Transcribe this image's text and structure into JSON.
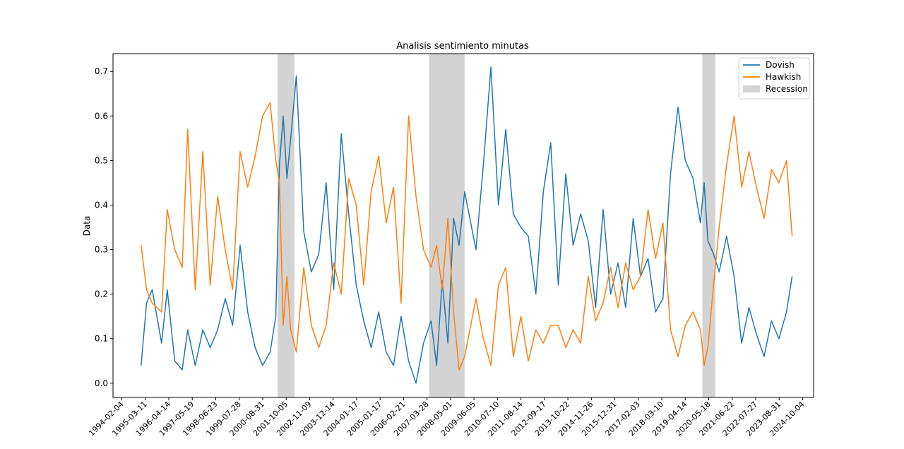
{
  "chart_data": {
    "type": "line",
    "title": "Analisis sentimiento minutas",
    "xlabel": "",
    "ylabel": "Data",
    "ylim": [
      -0.032,
      0.74
    ],
    "xlim": [
      "1993-11-01",
      "2025-01-15"
    ],
    "grid": false,
    "legend_position": "top-right",
    "x_ticks": [
      "1994-02-04",
      "1995-03-11",
      "1996-04-14",
      "1997-05-19",
      "1998-06-23",
      "1999-07-28",
      "2000-08-31",
      "2001-10-05",
      "2002-11-09",
      "2003-12-14",
      "2004-01-17",
      "2005-01-17",
      "2006-02-21",
      "2007-03-28",
      "2008-05-01",
      "2009-06-05",
      "2010-07-10",
      "2011-08-14",
      "2012-09-17",
      "2013-10-22",
      "2014-11-26",
      "2015-12-31",
      "2017-02-03",
      "2018-03-10",
      "2019-04-14",
      "2020-05-18",
      "2021-06-22",
      "2022-07-27",
      "2023-08-31",
      "2024-10-04"
    ],
    "y_ticks": [
      0.0,
      0.1,
      0.2,
      0.3,
      0.4,
      0.5,
      0.6,
      0.7
    ],
    "recessions": [
      {
        "start": "2001-03-01",
        "end": "2001-11-30"
      },
      {
        "start": "2007-12-01",
        "end": "2009-06-30"
      },
      {
        "start": "2020-02-01",
        "end": "2020-08-31"
      }
    ],
    "series": [
      {
        "name": "Dovish",
        "color": "#1f77b4",
        "x": [
          "1995-02-01",
          "1995-05-01",
          "1995-08-01",
          "1996-01-01",
          "1996-04-01",
          "1996-08-01",
          "1996-12-01",
          "1997-03-01",
          "1997-07-01",
          "1997-11-01",
          "1998-03-01",
          "1998-07-01",
          "1998-11-01",
          "1999-03-01",
          "1999-07-01",
          "1999-11-01",
          "2000-03-01",
          "2000-07-01",
          "2000-11-01",
          "2001-02-01",
          "2001-04-01",
          "2001-06-01",
          "2001-08-01",
          "2001-10-01",
          "2002-01-01",
          "2002-05-01",
          "2002-09-01",
          "2003-01-01",
          "2003-05-01",
          "2003-09-01",
          "2004-01-01",
          "2004-05-01",
          "2004-09-01",
          "2005-01-01",
          "2005-05-01",
          "2005-09-01",
          "2006-01-01",
          "2006-05-01",
          "2006-09-01",
          "2007-01-01",
          "2007-05-01",
          "2007-09-01",
          "2008-01-01",
          "2008-04-01",
          "2008-07-01",
          "2008-10-01",
          "2009-01-01",
          "2009-04-01",
          "2009-07-01",
          "2010-01-01",
          "2010-05-01",
          "2010-09-01",
          "2011-01-01",
          "2011-05-01",
          "2011-09-01",
          "2012-01-01",
          "2012-05-01",
          "2012-09-01",
          "2013-01-01",
          "2013-05-01",
          "2013-09-01",
          "2014-01-01",
          "2014-05-01",
          "2014-09-01",
          "2015-01-01",
          "2015-05-01",
          "2015-09-01",
          "2016-01-01",
          "2016-05-01",
          "2016-09-01",
          "2017-01-01",
          "2017-05-01",
          "2017-09-01",
          "2018-01-01",
          "2018-05-01",
          "2018-09-01",
          "2019-01-01",
          "2019-05-01",
          "2019-09-01",
          "2020-01-01",
          "2020-03-01",
          "2020-05-01",
          "2020-08-01",
          "2020-11-01",
          "2021-03-01",
          "2021-07-01",
          "2021-11-01",
          "2022-03-01",
          "2022-07-01",
          "2022-11-01",
          "2023-03-01",
          "2023-07-01",
          "2023-11-01",
          "2024-02-01"
        ],
        "y": [
          0.04,
          0.18,
          0.21,
          0.09,
          0.21,
          0.05,
          0.03,
          0.12,
          0.04,
          0.12,
          0.08,
          0.12,
          0.19,
          0.13,
          0.31,
          0.16,
          0.08,
          0.04,
          0.07,
          0.15,
          0.49,
          0.6,
          0.46,
          0.55,
          0.69,
          0.34,
          0.25,
          0.29,
          0.45,
          0.21,
          0.56,
          0.38,
          0.22,
          0.14,
          0.08,
          0.16,
          0.07,
          0.04,
          0.15,
          0.05,
          0.0,
          0.09,
          0.14,
          0.04,
          0.23,
          0.09,
          0.37,
          0.31,
          0.43,
          0.3,
          0.49,
          0.71,
          0.4,
          0.57,
          0.38,
          0.35,
          0.33,
          0.2,
          0.43,
          0.54,
          0.22,
          0.47,
          0.31,
          0.38,
          0.32,
          0.17,
          0.39,
          0.2,
          0.27,
          0.17,
          0.37,
          0.24,
          0.28,
          0.16,
          0.19,
          0.47,
          0.62,
          0.5,
          0.46,
          0.36,
          0.45,
          0.32,
          0.29,
          0.25,
          0.33,
          0.24,
          0.09,
          0.17,
          0.11,
          0.06,
          0.14,
          0.1,
          0.16,
          0.24
        ]
      },
      {
        "name": "Hawkish",
        "color": "#ff7f0e",
        "x": [
          "1995-02-01",
          "1995-05-01",
          "1995-08-01",
          "1996-01-01",
          "1996-04-01",
          "1996-08-01",
          "1996-12-01",
          "1997-03-01",
          "1997-07-01",
          "1997-11-01",
          "1998-03-01",
          "1998-07-01",
          "1998-11-01",
          "1999-03-01",
          "1999-07-01",
          "1999-11-01",
          "2000-03-01",
          "2000-07-01",
          "2000-11-01",
          "2001-02-01",
          "2001-04-01",
          "2001-06-01",
          "2001-08-01",
          "2001-10-01",
          "2002-01-01",
          "2002-05-01",
          "2002-09-01",
          "2003-01-01",
          "2003-05-01",
          "2003-09-01",
          "2004-01-01",
          "2004-05-01",
          "2004-09-01",
          "2005-01-01",
          "2005-05-01",
          "2005-09-01",
          "2006-01-01",
          "2006-05-01",
          "2006-09-01",
          "2007-01-01",
          "2007-05-01",
          "2007-09-01",
          "2008-01-01",
          "2008-04-01",
          "2008-07-01",
          "2008-10-01",
          "2009-01-01",
          "2009-04-01",
          "2009-07-01",
          "2010-01-01",
          "2010-05-01",
          "2010-09-01",
          "2011-01-01",
          "2011-05-01",
          "2011-09-01",
          "2012-01-01",
          "2012-05-01",
          "2012-09-01",
          "2013-01-01",
          "2013-05-01",
          "2013-09-01",
          "2014-01-01",
          "2014-05-01",
          "2014-09-01",
          "2015-01-01",
          "2015-05-01",
          "2015-09-01",
          "2016-01-01",
          "2016-05-01",
          "2016-09-01",
          "2017-01-01",
          "2017-05-01",
          "2017-09-01",
          "2018-01-01",
          "2018-05-01",
          "2018-09-01",
          "2019-01-01",
          "2019-05-01",
          "2019-09-01",
          "2020-01-01",
          "2020-03-01",
          "2020-05-01",
          "2020-08-01",
          "2020-11-01",
          "2021-03-01",
          "2021-07-01",
          "2021-11-01",
          "2022-03-01",
          "2022-07-01",
          "2022-11-01",
          "2023-03-01",
          "2023-07-01",
          "2023-11-01",
          "2024-02-01"
        ],
        "y": [
          0.31,
          0.21,
          0.18,
          0.16,
          0.39,
          0.3,
          0.26,
          0.57,
          0.21,
          0.52,
          0.22,
          0.42,
          0.3,
          0.21,
          0.52,
          0.44,
          0.51,
          0.6,
          0.63,
          0.5,
          0.45,
          0.13,
          0.24,
          0.12,
          0.07,
          0.26,
          0.13,
          0.08,
          0.13,
          0.27,
          0.2,
          0.46,
          0.4,
          0.22,
          0.43,
          0.51,
          0.36,
          0.44,
          0.18,
          0.6,
          0.42,
          0.3,
          0.26,
          0.31,
          0.21,
          0.37,
          0.16,
          0.03,
          0.06,
          0.19,
          0.1,
          0.04,
          0.22,
          0.26,
          0.06,
          0.15,
          0.05,
          0.12,
          0.09,
          0.13,
          0.13,
          0.08,
          0.12,
          0.09,
          0.24,
          0.14,
          0.18,
          0.26,
          0.17,
          0.27,
          0.21,
          0.24,
          0.39,
          0.28,
          0.36,
          0.12,
          0.06,
          0.13,
          0.16,
          0.12,
          0.04,
          0.08,
          0.22,
          0.35,
          0.49,
          0.6,
          0.44,
          0.52,
          0.44,
          0.37,
          0.48,
          0.45,
          0.5,
          0.33
        ]
      }
    ],
    "legend": [
      {
        "label": "Dovish",
        "kind": "line",
        "color": "#1f77b4"
      },
      {
        "label": "Hawkish",
        "kind": "line",
        "color": "#ff7f0e"
      },
      {
        "label": "Recession",
        "kind": "patch",
        "color": "#d3d3d3"
      }
    ]
  }
}
